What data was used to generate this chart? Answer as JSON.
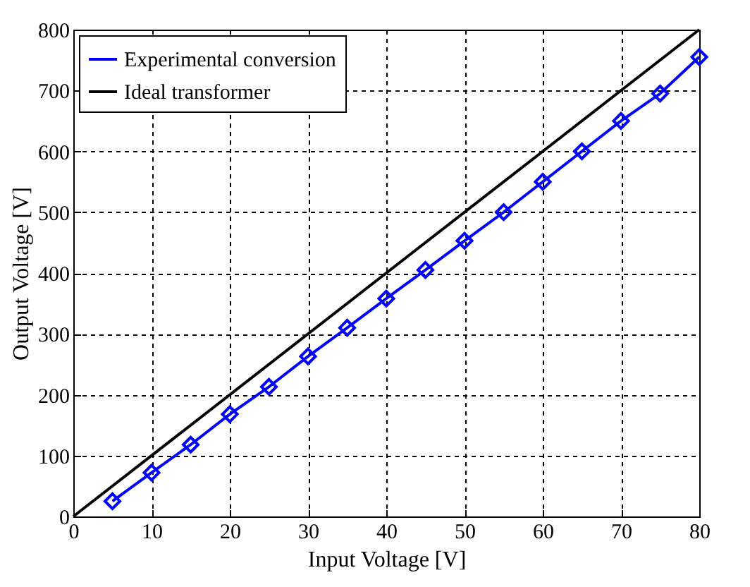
{
  "chart_data": {
    "type": "line",
    "xlabel": "Input Voltage [V]",
    "ylabel": "Output Voltage [V]",
    "xlim": [
      0,
      80
    ],
    "xticks": [
      0,
      10,
      20,
      30,
      40,
      50,
      60,
      70,
      80
    ],
    "ylim": [
      0,
      800
    ],
    "yticks": [
      0,
      100,
      200,
      300,
      400,
      500,
      600,
      700,
      800
    ],
    "grid": true,
    "legend": "top left",
    "line_style": "solid",
    "series": [
      {
        "name": "Experimental conversion",
        "color": "#0000ff",
        "marker": "diamond",
        "x": [
          5,
          10,
          15,
          20,
          25,
          30,
          35,
          40,
          45,
          50,
          55,
          60,
          65,
          70,
          75,
          80
        ],
        "values": [
          25,
          72,
          118,
          168,
          213,
          263,
          310,
          358,
          405,
          453,
          500,
          550,
          600,
          650,
          695,
          755
        ]
      },
      {
        "name": "Ideal transformer",
        "color": "#000000",
        "marker": "none",
        "x": [
          0,
          80
        ],
        "values": [
          0,
          800
        ]
      }
    ]
  }
}
